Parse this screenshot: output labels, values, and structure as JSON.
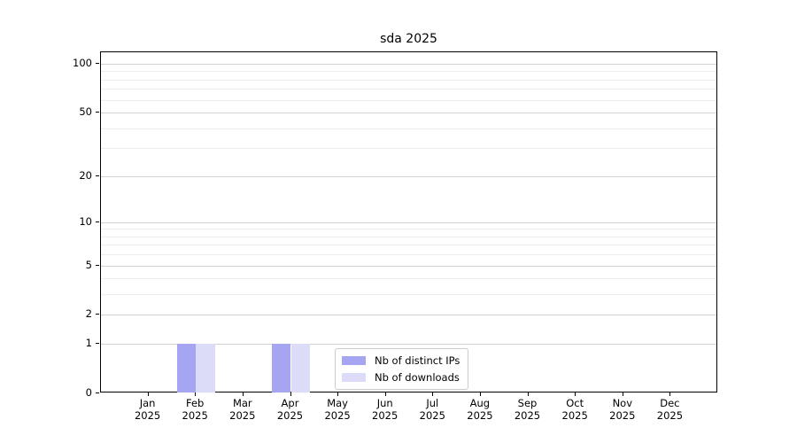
{
  "chart_data": {
    "type": "bar",
    "title": "sda 2025",
    "categories": [
      "Jan",
      "Feb",
      "Mar",
      "Apr",
      "May",
      "Jun",
      "Jul",
      "Aug",
      "Sep",
      "Oct",
      "Nov",
      "Dec"
    ],
    "year_label": "2025",
    "series": [
      {
        "name": "Nb of distinct IPs",
        "color": "#a5a5f2",
        "values": [
          0,
          1,
          0,
          1,
          0,
          0,
          0,
          0,
          0,
          0,
          0,
          0
        ]
      },
      {
        "name": "Nb of downloads",
        "color": "#dcdcf8",
        "values": [
          0,
          1,
          0,
          1,
          0,
          0,
          0,
          0,
          0,
          0,
          0,
          0
        ]
      }
    ],
    "xlabel": "",
    "ylabel": "",
    "y_scale": "log1p",
    "ylim": [
      0,
      100
    ],
    "y_major_ticks": [
      0,
      1,
      2,
      5,
      10,
      20,
      50,
      100
    ],
    "y_minor_ticks": [
      3,
      4,
      6,
      7,
      8,
      9,
      30,
      40,
      60,
      70,
      80,
      90
    ],
    "grid": "both",
    "legend_position": "lower center",
    "colors": {
      "axis": "#000000",
      "major_grid": "#d2d2d2",
      "minor_grid": "#ededed",
      "legend_border": "#cccccc",
      "background": "#ffffff"
    }
  }
}
